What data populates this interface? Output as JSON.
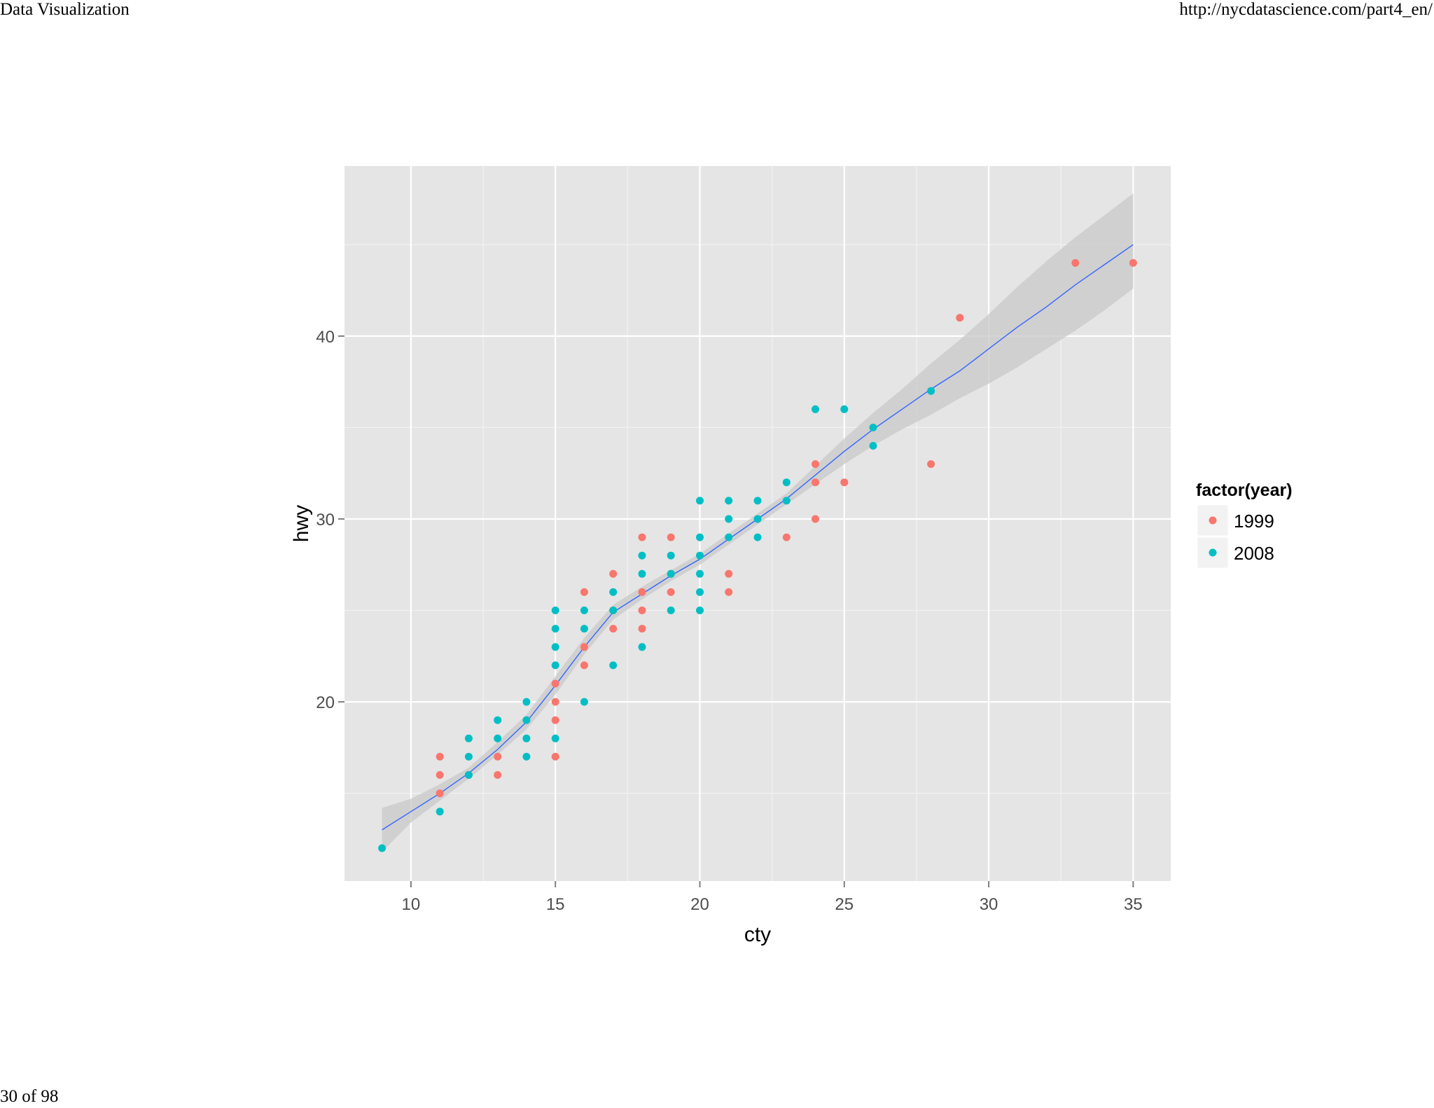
{
  "page": {
    "header_left": "Data Visualization",
    "header_right": "http://nycdatascience.com/part4_en/",
    "footer": "30 of 98"
  },
  "chart_data": {
    "type": "scatter",
    "xlabel": "cty",
    "ylabel": "hwy",
    "xlim": [
      7.7,
      36.3
    ],
    "ylim": [
      10.2,
      49.3
    ],
    "x_ticks": [
      10,
      15,
      20,
      25,
      30,
      35
    ],
    "y_ticks": [
      20,
      30,
      40
    ],
    "grid": true,
    "legend": {
      "title": "factor(year)",
      "placement": "right"
    },
    "colors": {
      "1999": "#F8766D",
      "2008": "#00BFC4",
      "smooth": "#3366FF",
      "ribbon": "#c8c8c8",
      "panel": "#e5e5e5",
      "grid": "#ffffff"
    },
    "series": [
      {
        "name": "1999",
        "points": [
          [
            11,
            17
          ],
          [
            11,
            16
          ],
          [
            11,
            15
          ],
          [
            12,
            16
          ],
          [
            13,
            17
          ],
          [
            13,
            16
          ],
          [
            15,
            21
          ],
          [
            15,
            20
          ],
          [
            15,
            19
          ],
          [
            15,
            17
          ],
          [
            16,
            26
          ],
          [
            16,
            23
          ],
          [
            16,
            22
          ],
          [
            17,
            27
          ],
          [
            17,
            25
          ],
          [
            17,
            24
          ],
          [
            18,
            29
          ],
          [
            18,
            26
          ],
          [
            18,
            25
          ],
          [
            18,
            24
          ],
          [
            19,
            29
          ],
          [
            19,
            27
          ],
          [
            19,
            26
          ],
          [
            21,
            27
          ],
          [
            21,
            26
          ],
          [
            23,
            29
          ],
          [
            24,
            33
          ],
          [
            24,
            32
          ],
          [
            24,
            30
          ],
          [
            25,
            32
          ],
          [
            28,
            33
          ],
          [
            29,
            41
          ],
          [
            33,
            44
          ],
          [
            35,
            44
          ]
        ]
      },
      {
        "name": "2008",
        "points": [
          [
            9,
            12
          ],
          [
            11,
            14
          ],
          [
            12,
            18
          ],
          [
            12,
            17
          ],
          [
            12,
            16
          ],
          [
            13,
            19
          ],
          [
            13,
            18
          ],
          [
            14,
            20
          ],
          [
            14,
            19
          ],
          [
            14,
            18
          ],
          [
            14,
            17
          ],
          [
            15,
            25
          ],
          [
            15,
            24
          ],
          [
            15,
            23
          ],
          [
            15,
            22
          ],
          [
            15,
            18
          ],
          [
            16,
            25
          ],
          [
            16,
            24
          ],
          [
            16,
            20
          ],
          [
            17,
            26
          ],
          [
            17,
            25
          ],
          [
            17,
            22
          ],
          [
            18,
            28
          ],
          [
            18,
            27
          ],
          [
            18,
            23
          ],
          [
            19,
            28
          ],
          [
            19,
            27
          ],
          [
            19,
            25
          ],
          [
            20,
            31
          ],
          [
            20,
            29
          ],
          [
            20,
            28
          ],
          [
            20,
            27
          ],
          [
            20,
            26
          ],
          [
            20,
            25
          ],
          [
            21,
            31
          ],
          [
            21,
            30
          ],
          [
            21,
            29
          ],
          [
            22,
            31
          ],
          [
            22,
            30
          ],
          [
            22,
            29
          ],
          [
            23,
            32
          ],
          [
            23,
            31
          ],
          [
            24,
            36
          ],
          [
            25,
            36
          ],
          [
            26,
            35
          ],
          [
            26,
            34
          ],
          [
            28,
            37
          ]
        ]
      }
    ],
    "smooth": {
      "x": [
        9,
        10,
        11,
        12,
        13,
        14,
        15,
        16,
        17,
        18,
        19,
        20,
        21,
        22,
        23,
        24,
        25,
        26,
        27,
        28,
        29,
        30,
        31,
        32,
        33,
        34,
        35
      ],
      "y": [
        13.0,
        14.0,
        15.0,
        16.1,
        17.4,
        18.9,
        20.9,
        23.0,
        24.9,
        25.9,
        26.9,
        27.8,
        28.9,
        30.0,
        31.1,
        32.4,
        33.7,
        34.9,
        36.0,
        37.1,
        38.1,
        39.3,
        40.5,
        41.6,
        42.8,
        43.9,
        45.0
      ],
      "lower": [
        11.8,
        13.4,
        14.6,
        15.8,
        17.1,
        18.5,
        20.4,
        22.6,
        24.5,
        25.6,
        26.6,
        27.5,
        28.6,
        29.7,
        30.8,
        31.9,
        33.0,
        34.0,
        34.9,
        35.7,
        36.6,
        37.4,
        38.3,
        39.3,
        40.3,
        41.4,
        42.6
      ],
      "upper": [
        14.2,
        14.7,
        15.5,
        16.4,
        17.8,
        19.3,
        21.4,
        23.5,
        25.3,
        26.3,
        27.2,
        28.1,
        29.2,
        30.3,
        31.4,
        32.9,
        34.4,
        35.8,
        37.1,
        38.5,
        39.8,
        41.2,
        42.7,
        44.1,
        45.4,
        46.6,
        47.8
      ]
    }
  }
}
